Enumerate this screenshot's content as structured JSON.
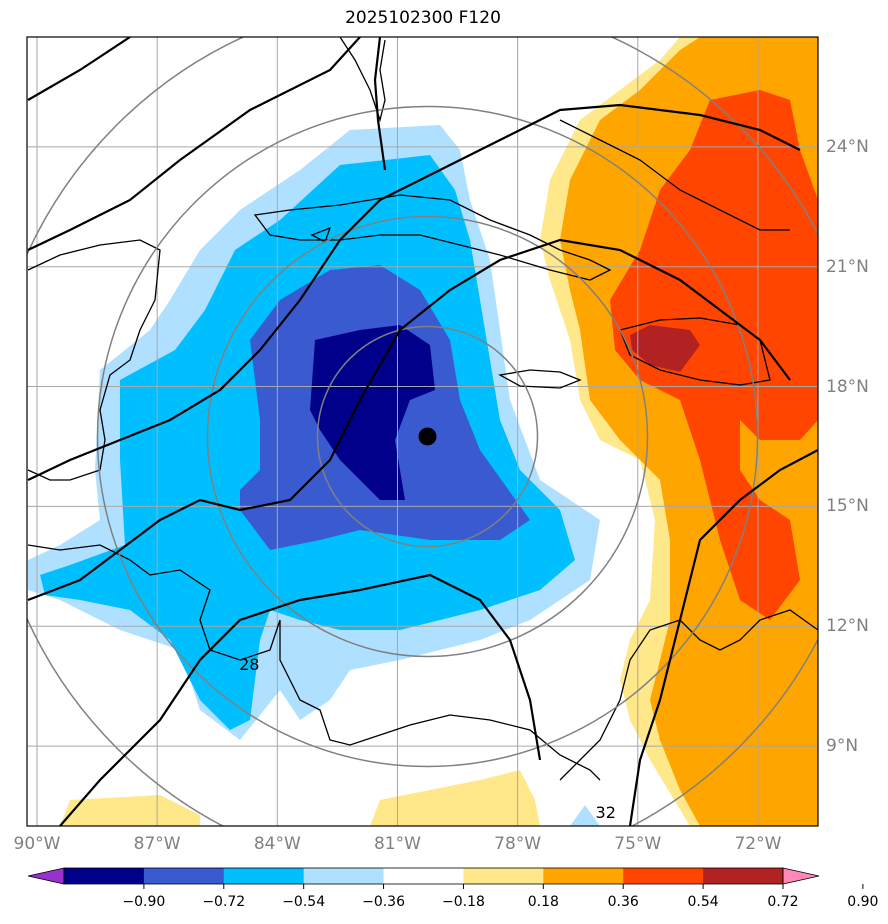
{
  "title": "2025102300 F120",
  "map": {
    "lon_range": [
      -90.25,
      -70.5
    ],
    "lat_range": [
      7.0,
      26.75
    ],
    "center_marker": {
      "lon": -80.25,
      "lat": 16.75
    },
    "contour_labels": [
      {
        "text": "28",
        "lon": -84.7,
        "lat": 10.9
      },
      {
        "text": "32",
        "lon": -75.8,
        "lat": 7.2
      }
    ]
  },
  "lon_ticks": [
    {
      "value": -90,
      "label": "90°W"
    },
    {
      "value": -87,
      "label": "87°W"
    },
    {
      "value": -84,
      "label": "84°W"
    },
    {
      "value": -81,
      "label": "81°W"
    },
    {
      "value": -78,
      "label": "78°W"
    },
    {
      "value": -75,
      "label": "75°W"
    },
    {
      "value": -72,
      "label": "72°W"
    }
  ],
  "lat_ticks": [
    {
      "value": 24,
      "label": "24°N"
    },
    {
      "value": 21,
      "label": "21°N"
    },
    {
      "value": 18,
      "label": "18°N"
    },
    {
      "value": 15,
      "label": "15°N"
    },
    {
      "value": 12,
      "label": "12°N"
    },
    {
      "value": 9,
      "label": "9°N"
    }
  ],
  "colorbar": {
    "levels": [
      "−0.90",
      "−0.72",
      "−0.54",
      "−0.36",
      "−0.18",
      "0.18",
      "0.36",
      "0.54",
      "0.72",
      "0.90"
    ],
    "colors": [
      "#9932cc",
      "#00008b",
      "#3a5bcf",
      "#00bfff",
      "#b0e0ff",
      "#ffffff",
      "#ffe88a",
      "#ffa500",
      "#ff4500",
      "#b22222",
      "#ff88b8"
    ]
  },
  "colors": {
    "grid": "#a8a8a8",
    "ring": "#808080",
    "coast": "#000000",
    "contour": "#000000"
  }
}
